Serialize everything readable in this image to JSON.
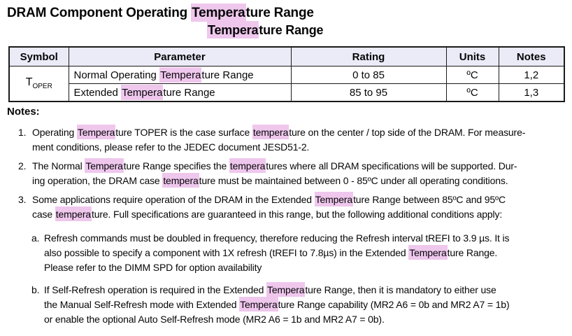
{
  "highlight_term": "tempera",
  "colors": {
    "highlight": "#efc7ed",
    "table_header_bg": "#ebebf8",
    "border": "#1a1a1a",
    "text": "#060608"
  },
  "title": {
    "line1": "DRAM Component Operating Temperature Range",
    "line2": "Temperature Range"
  },
  "table": {
    "headers": {
      "symbol": "Symbol",
      "parameter": "Parameter",
      "rating": "Rating",
      "units": "Units",
      "notes": "Notes"
    },
    "symbol": {
      "base": "T",
      "sub": "OPER"
    },
    "rows": [
      {
        "parameter": "Normal Operating Temperature Range",
        "rating": "0 to 85",
        "units": "ºC",
        "notes": "1,2"
      },
      {
        "parameter": "Extended Temperature Range",
        "rating": "85 to 95",
        "units": "ºC",
        "notes": "1,3"
      }
    ]
  },
  "notes": {
    "heading": "Notes:",
    "items": [
      {
        "marker": "1.",
        "lines": [
          "Operating Temperature TOPER is the case surface temperature on the center / top side of the DRAM. For measure-",
          "ment conditions, please refer to the JEDEC document JESD51-2."
        ]
      },
      {
        "marker": "2.",
        "lines": [
          "The Normal Temperature Range specifies the temperatures where all DRAM specifications will be supported. Dur-",
          "ing operation, the DRAM case temperature must be maintained between 0 - 85ºC under all operating conditions."
        ]
      },
      {
        "marker": "3.",
        "lines": [
          "Some applications require operation of the DRAM in the Extended Temperature Range between 85ºC and 95ºC",
          "case temperature. Full specifications are guaranteed in this range, but the following additional conditions apply:"
        ]
      }
    ],
    "subitems": [
      {
        "marker": "a.",
        "lines": [
          "Refresh commands must be doubled in frequency, therefore reducing the Refresh interval tREFI to 3.9 µs. It is",
          "also possible to specify a component with 1X refresh (tREFI to 7.8µs) in the Extended Temperature Range.",
          "Please refer to the DIMM SPD for option availability"
        ]
      },
      {
        "marker": "b.",
        "lines": [
          "If Self-Refresh operation is required in the Extended Temperature Range, then it is mandatory to either use",
          "the Manual Self-Refresh mode with Extended Temperature Range capability (MR2 A6 = 0b and MR2 A7 = 1b)",
          "or enable the optional Auto Self-Refresh mode (MR2 A6 = 1b and MR2 A7 = 0b)."
        ]
      }
    ]
  }
}
